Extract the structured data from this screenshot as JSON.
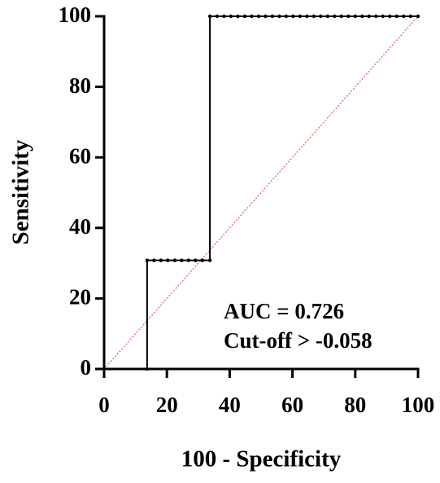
{
  "chart_data": {
    "type": "line",
    "x_label": "100 - Specificity",
    "y_label": "Sensitivity",
    "annotations": [
      "AUC = 0.726",
      "Cut-off > -0.058"
    ],
    "series": [
      {
        "color": "#000000",
        "x": [
          0,
          13.7,
          13.7,
          15.9,
          18.1,
          20.3,
          22.5,
          24.7,
          26.9,
          29.1,
          31.3,
          33.7,
          33.7,
          36,
          38.2,
          40.4,
          42.6,
          44.8,
          47,
          49.2,
          51.4,
          53.6,
          55.8,
          58,
          60.2,
          62.4,
          64.6,
          66.8,
          69,
          71.2,
          73.4,
          75.6,
          77.8,
          80,
          82.2,
          84.4,
          86.6,
          88.8,
          91,
          93.2,
          95.4,
          97.6,
          100
        ],
        "values": [
          0,
          0,
          30.8,
          30.8,
          30.8,
          30.8,
          30.8,
          30.8,
          30.8,
          30.8,
          30.8,
          30.8,
          100,
          100,
          100,
          100,
          100,
          100,
          100,
          100,
          100,
          100,
          100,
          100,
          100,
          100,
          100,
          100,
          100,
          100,
          100,
          100,
          100,
          100,
          100,
          100,
          100,
          100,
          100,
          100,
          100,
          100,
          100
        ]
      }
    ],
    "reference_line": {
      "color": "#e06666",
      "x": [
        0,
        100
      ],
      "values": [
        0,
        100
      ]
    },
    "xlim": [
      0,
      100
    ],
    "ylim": [
      0,
      100
    ],
    "xticks": [
      0,
      20,
      40,
      60,
      80,
      100
    ],
    "yticks": [
      0,
      20,
      40,
      60,
      80,
      100
    ]
  }
}
